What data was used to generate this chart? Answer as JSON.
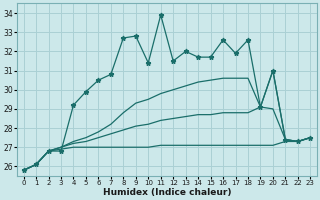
{
  "xlabel": "Humidex (Indice chaleur)",
  "background_color": "#cce8ea",
  "grid_color": "#aad0d4",
  "line_color": "#1a6e6a",
  "x": [
    0,
    1,
    2,
    3,
    4,
    5,
    6,
    7,
    8,
    9,
    10,
    11,
    12,
    13,
    14,
    15,
    16,
    17,
    18,
    19,
    20,
    21,
    22,
    23
  ],
  "line_top": [
    25.8,
    26.1,
    26.8,
    26.8,
    29.2,
    29.9,
    30.5,
    30.8,
    32.7,
    32.8,
    31.4,
    33.9,
    31.5,
    32.0,
    31.7,
    31.7,
    32.6,
    31.9,
    32.6,
    29.1,
    31.0,
    27.4,
    27.3,
    27.5
  ],
  "line_mid_high": [
    25.8,
    26.1,
    26.8,
    27.0,
    27.3,
    27.5,
    27.8,
    28.2,
    28.8,
    29.3,
    29.5,
    29.8,
    30.0,
    30.2,
    30.4,
    30.5,
    30.6,
    30.6,
    30.6,
    29.1,
    31.0,
    27.4,
    27.3,
    27.5
  ],
  "line_mid_low": [
    25.8,
    26.1,
    26.8,
    27.0,
    27.2,
    27.3,
    27.5,
    27.7,
    27.9,
    28.1,
    28.2,
    28.4,
    28.5,
    28.6,
    28.7,
    28.7,
    28.8,
    28.8,
    28.8,
    29.1,
    29.0,
    27.4,
    27.3,
    27.5
  ],
  "line_bot": [
    25.8,
    26.1,
    26.8,
    26.9,
    27.0,
    27.0,
    27.0,
    27.0,
    27.0,
    27.0,
    27.0,
    27.1,
    27.1,
    27.1,
    27.1,
    27.1,
    27.1,
    27.1,
    27.1,
    27.1,
    27.1,
    27.3,
    27.3,
    27.5
  ],
  "ylim": [
    25.5,
    34.5
  ],
  "yticks": [
    26,
    27,
    28,
    29,
    30,
    31,
    32,
    33,
    34
  ],
  "xlim": [
    -0.5,
    23.5
  ],
  "xticks": [
    0,
    1,
    2,
    3,
    4,
    5,
    6,
    7,
    8,
    9,
    10,
    11,
    12,
    13,
    14,
    15,
    16,
    17,
    18,
    19,
    20,
    21,
    22,
    23
  ]
}
